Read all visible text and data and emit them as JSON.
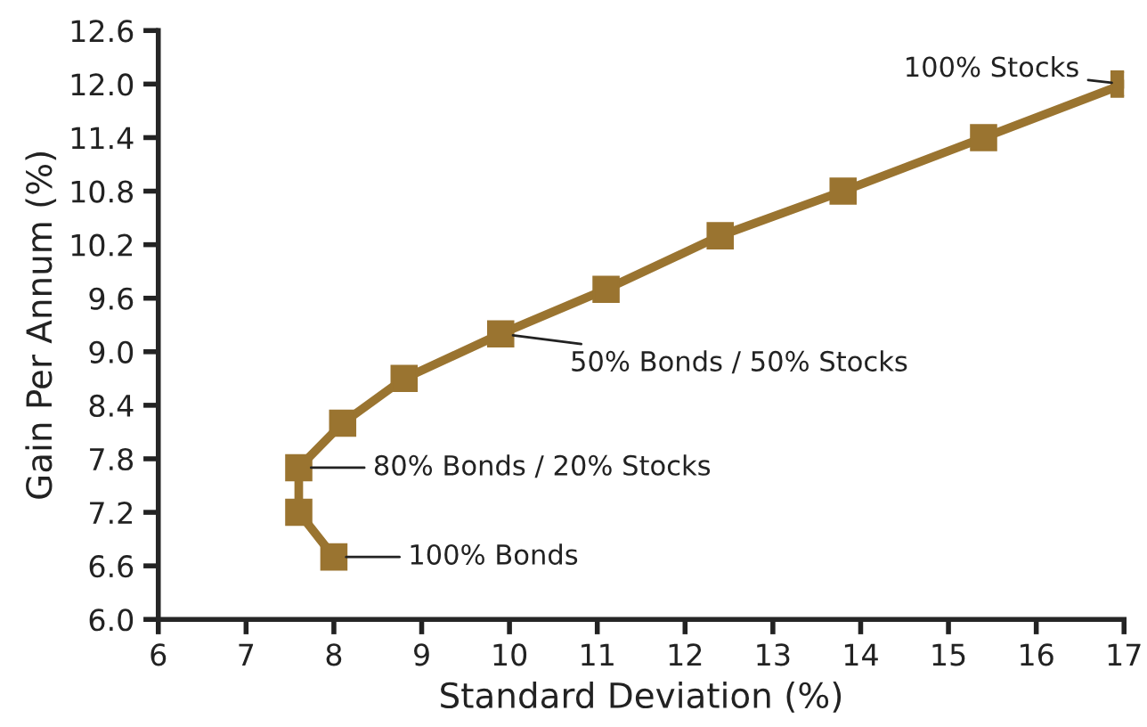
{
  "chart_data": {
    "type": "line",
    "xlabel": "Standard Deviation (%)",
    "ylabel": "Gain Per Annum (%)",
    "x": [
      8.0,
      7.6,
      7.6,
      8.1,
      8.8,
      9.9,
      11.1,
      12.4,
      13.8,
      15.4,
      17.0
    ],
    "series": [
      {
        "color": "#9a7430",
        "values": [
          6.7,
          7.2,
          7.7,
          8.2,
          8.7,
          9.2,
          9.7,
          10.3,
          10.8,
          11.4,
          12.0
        ]
      }
    ],
    "marker": "square",
    "line_style": "solid",
    "grid": false,
    "xlim": [
      6,
      17
    ],
    "xticks": [
      6,
      7,
      8,
      9,
      10,
      11,
      12,
      13,
      14,
      15,
      16,
      17
    ],
    "ylim": [
      6.0,
      12.6
    ],
    "yticks": [
      {
        "value": 6.0,
        "label": "6.0"
      },
      {
        "value": 6.6,
        "label": "6.6"
      },
      {
        "value": 7.2,
        "label": "7.2"
      },
      {
        "value": 7.8,
        "label": "7.8"
      },
      {
        "value": 8.4,
        "label": "8.4"
      },
      {
        "value": 9.0,
        "label": "9.0"
      },
      {
        "value": 9.6,
        "label": "9.6"
      },
      {
        "value": 10.2,
        "label": "10.2"
      },
      {
        "value": 10.8,
        "label": "10.8"
      },
      {
        "value": 11.4,
        "label": "11.4"
      },
      {
        "value": 12.0,
        "label": "12.0"
      },
      {
        "value": 12.6,
        "label": "12.6"
      }
    ],
    "annotations": [
      {
        "text": "100% Bonds",
        "x": 8.0,
        "y": 6.7
      },
      {
        "text": "80% Bonds / 20% Stocks",
        "x": 7.6,
        "y": 7.7
      },
      {
        "text": "50% Bonds / 50% Stocks",
        "x": 9.9,
        "y": 9.2
      },
      {
        "text": "100% Stocks",
        "x": 17.0,
        "y": 12.0
      }
    ]
  }
}
